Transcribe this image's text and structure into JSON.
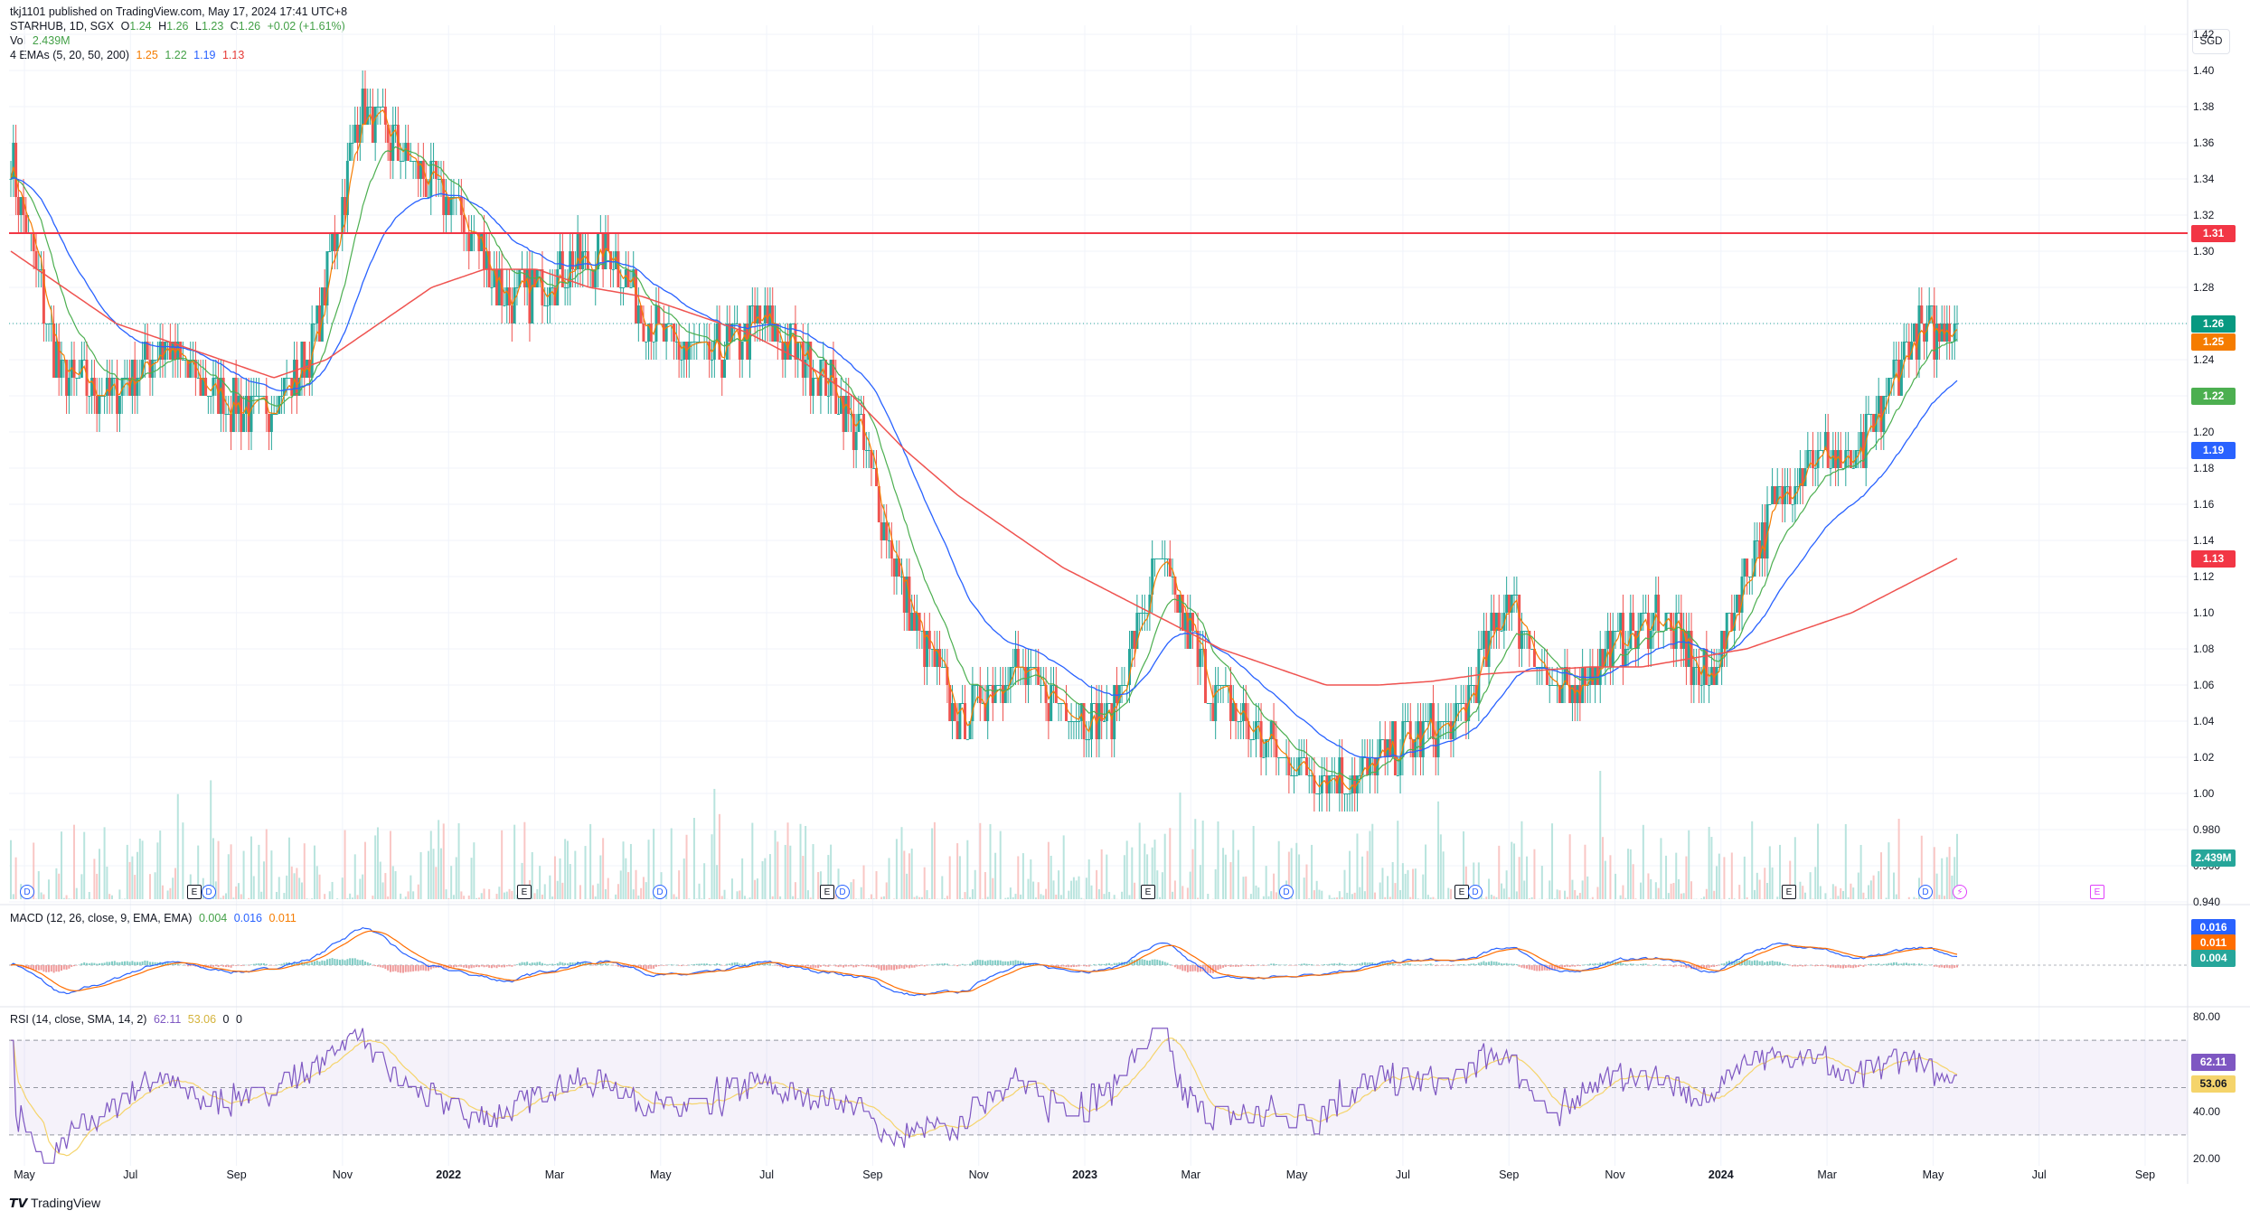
{
  "header": {
    "published": "tkj1101 published on TradingView.com, May 17, 2024 17:41 UTC+8",
    "symbol": "STARHUB, 1D, SGX",
    "ohlc": {
      "o_label": "O",
      "o": "1.24",
      "h_label": "H",
      "h": "1.26",
      "l_label": "L",
      "l": "1.23",
      "c_label": "C",
      "c": "1.26",
      "change": "+0.02 (+1.61%)"
    },
    "vol_label": "Vol",
    "vol": "2.439M",
    "ema_label": "4 EMAs (5, 20, 50, 200)",
    "ema_values": [
      "1.25",
      "1.22",
      "1.19",
      "1.13"
    ]
  },
  "currency": "SGD",
  "brand": "TradingView",
  "macd_header": {
    "label": "MACD (12, 26, close, 9, EMA, EMA)",
    "values": [
      "0.004",
      "0.016",
      "0.011"
    ]
  },
  "rsi_header": {
    "label": "RSI (14, close, SMA, 14, 2)",
    "values": [
      "62.11",
      "53.06",
      "0",
      "0"
    ]
  },
  "colors": {
    "up": "#26a69a",
    "down": "#ef5350",
    "ema5": "#f57c00",
    "ema20": "#4caf50",
    "ema50": "#2962ff",
    "ema200": "#ef5350",
    "hline": "#f23645",
    "rsi": "#7e57c2",
    "rsi_ma": "#f5d46b"
  },
  "price_labels": [
    {
      "text": "1.31",
      "color": "#f23645"
    },
    {
      "text": "1.26",
      "color": "#089981"
    },
    {
      "text": "1.25",
      "color": "#f57c00"
    },
    {
      "text": "1.22",
      "color": "#4caf50"
    },
    {
      "text": "1.19",
      "color": "#2962ff"
    },
    {
      "text": "1.13",
      "color": "#f23645"
    },
    {
      "text": "2.439M",
      "color": "#26a69a"
    }
  ],
  "macd_labels": [
    {
      "text": "0.016",
      "color": "#2962ff"
    },
    {
      "text": "0.011",
      "color": "#ff6d00"
    },
    {
      "text": "0.004",
      "color": "#26a69a"
    }
  ],
  "rsi_labels": [
    {
      "text": "62.11",
      "color": "#7e57c2"
    },
    {
      "text": "53.06",
      "color": "#f5d46b"
    }
  ],
  "y_ticks": [
    "1.42",
    "1.40",
    "1.38",
    "1.36",
    "1.34",
    "1.32",
    "1.30",
    "1.28",
    "1.26",
    "1.24",
    "1.22",
    "1.20",
    "1.18",
    "1.16",
    "1.14",
    "1.12",
    "1.10",
    "1.08",
    "1.06",
    "1.04",
    "1.02",
    "1.00",
    "0.980",
    "0.960",
    "0.940"
  ],
  "rsi_ticks": [
    "80.00",
    "60.00",
    "40.00",
    "20.00"
  ],
  "x_ticks": [
    {
      "text": "May",
      "bold": false
    },
    {
      "text": "Jul",
      "bold": false
    },
    {
      "text": "Sep",
      "bold": false
    },
    {
      "text": "Nov",
      "bold": false
    },
    {
      "text": "2022",
      "bold": true
    },
    {
      "text": "Mar",
      "bold": false
    },
    {
      "text": "May",
      "bold": false
    },
    {
      "text": "Jul",
      "bold": false
    },
    {
      "text": "Sep",
      "bold": false
    },
    {
      "text": "Nov",
      "bold": false
    },
    {
      "text": "2023",
      "bold": true
    },
    {
      "text": "Mar",
      "bold": false
    },
    {
      "text": "May",
      "bold": false
    },
    {
      "text": "Jul",
      "bold": false
    },
    {
      "text": "Sep",
      "bold": false
    },
    {
      "text": "Nov",
      "bold": false
    },
    {
      "text": "2024",
      "bold": true
    },
    {
      "text": "Mar",
      "bold": false
    },
    {
      "text": "May",
      "bold": false
    },
    {
      "text": "Jul",
      "bold": false
    },
    {
      "text": "Sep",
      "bold": false
    }
  ],
  "events": [
    {
      "type": "D",
      "label": "D"
    },
    {
      "type": "E",
      "label": "E"
    },
    {
      "type": "D",
      "label": "D"
    },
    {
      "type": "E",
      "label": "E"
    },
    {
      "type": "D",
      "label": "D"
    },
    {
      "type": "E",
      "label": "E"
    },
    {
      "type": "D",
      "label": "D"
    },
    {
      "type": "E",
      "label": "E"
    },
    {
      "type": "D",
      "label": "D"
    },
    {
      "type": "E",
      "label": "E"
    },
    {
      "type": "D",
      "label": "D"
    },
    {
      "type": "E",
      "label": "E"
    },
    {
      "type": "D",
      "label": "D"
    },
    {
      "type": "bolt",
      "label": "⚡"
    },
    {
      "type": "E2",
      "label": "E"
    }
  ],
  "chart_data": {
    "type": "candlestick",
    "title": "STARHUB, 1D, SGX",
    "ylim": [
      0.94,
      1.42
    ],
    "horizontal_line": 1.31,
    "last_close": 1.26,
    "months": [
      "May 2021",
      "Jun 2021",
      "Jul 2021",
      "Aug 2021",
      "Sep 2021",
      "Oct 2021",
      "Nov 2021",
      "Dec 2021",
      "Jan 2022",
      "Feb 2022",
      "Mar 2022",
      "Apr 2022",
      "May 2022",
      "Jun 2022",
      "Jul 2022",
      "Aug 2022",
      "Sep 2022",
      "Oct 2022",
      "Nov 2022",
      "Dec 2022",
      "Jan 2023",
      "Feb 2023",
      "Mar 2023",
      "Apr 2023",
      "May 2023",
      "Jun 2023",
      "Jul 2023",
      "Aug 2023",
      "Sep 2023",
      "Oct 2023",
      "Nov 2023",
      "Dec 2023",
      "Jan 2024",
      "Feb 2024",
      "Mar 2024",
      "Apr 2024",
      "May 2024"
    ],
    "close_path": [
      1.35,
      1.23,
      1.22,
      1.25,
      1.22,
      1.21,
      1.24,
      1.38,
      1.35,
      1.32,
      1.27,
      1.29,
      1.3,
      1.25,
      1.24,
      1.26,
      1.24,
      1.2,
      1.1,
      1.04,
      1.07,
      1.05,
      1.04,
      1.13,
      1.06,
      1.03,
      1.01,
      1.01,
      1.03,
      1.04,
      1.11,
      1.05,
      1.08,
      1.1,
      1.06,
      1.14,
      1.19,
      1.18,
      1.25,
      1.26
    ],
    "ema200_path": [
      1.3,
      1.28,
      1.26,
      1.25,
      1.24,
      1.23,
      1.24,
      1.26,
      1.28,
      1.29,
      1.29,
      1.28,
      1.275,
      1.265,
      1.255,
      1.24,
      1.22,
      1.19,
      1.165,
      1.145,
      1.125,
      1.11,
      1.095,
      1.08,
      1.07,
      1.06,
      1.06,
      1.062,
      1.066,
      1.068,
      1.07,
      1.07,
      1.075,
      1.08,
      1.09,
      1.1,
      1.115,
      1.13
    ],
    "rsi_range": [
      20,
      80
    ],
    "rsi_bands": [
      70,
      30
    ]
  }
}
